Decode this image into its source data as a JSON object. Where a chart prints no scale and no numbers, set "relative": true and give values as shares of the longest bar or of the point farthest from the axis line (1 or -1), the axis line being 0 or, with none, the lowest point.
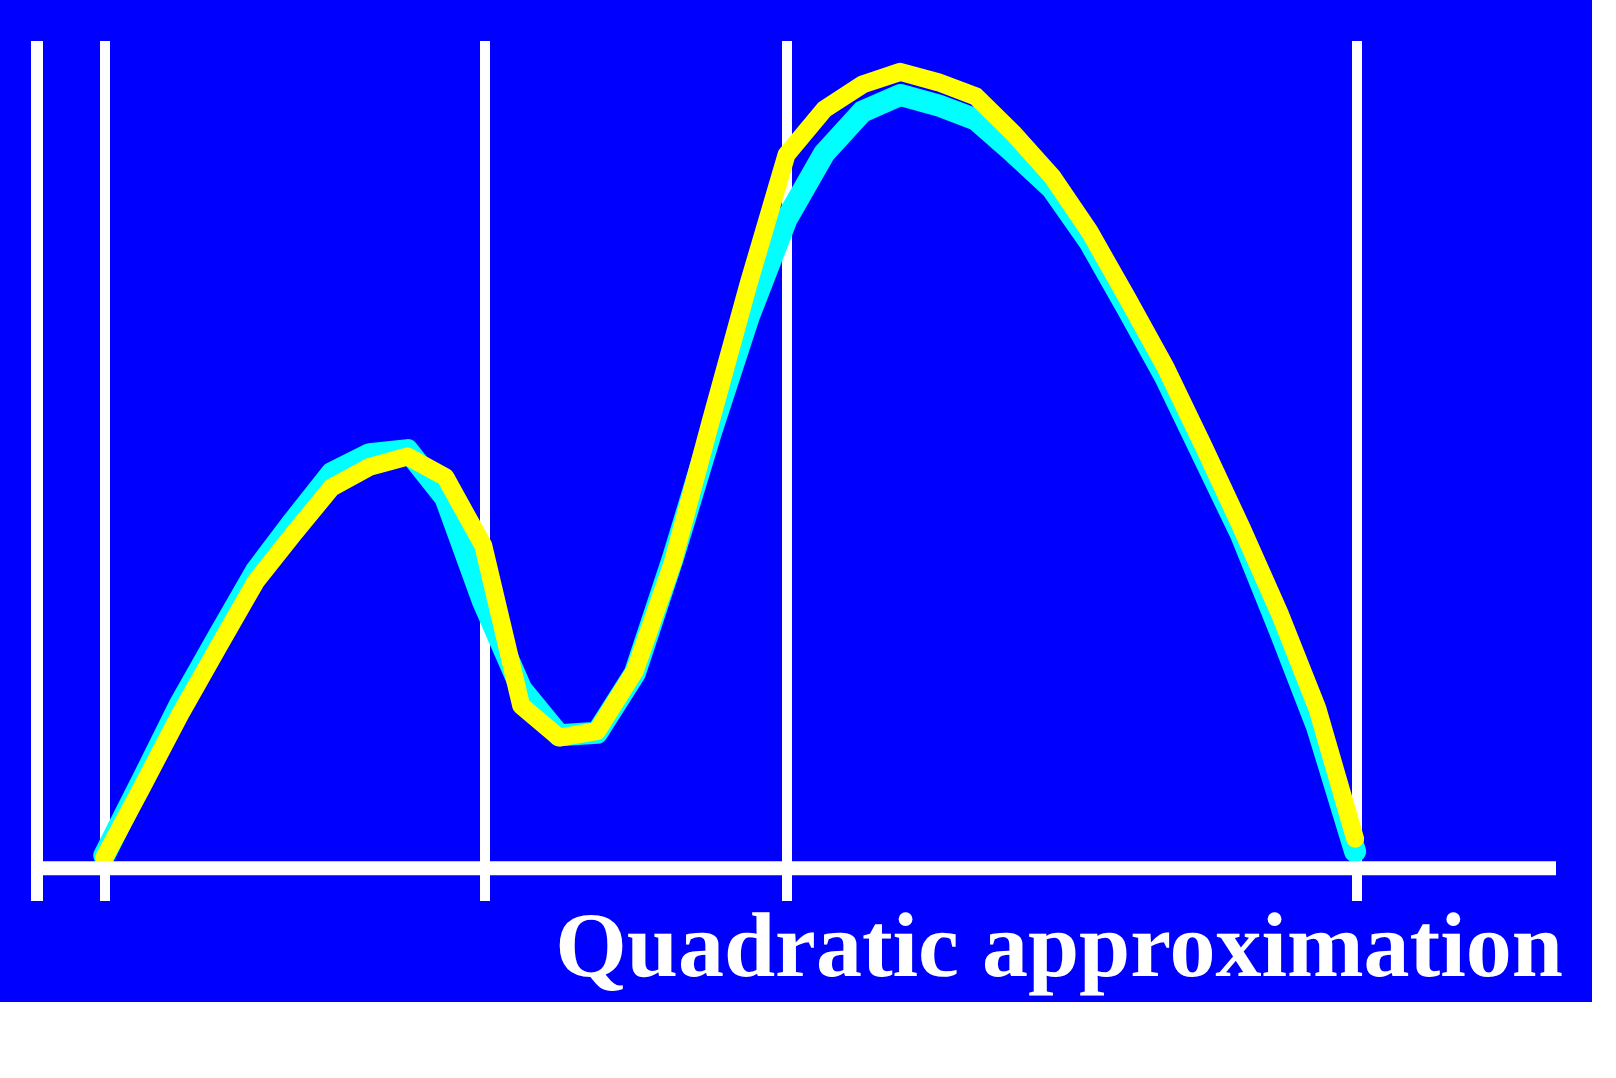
{
  "chart_data": {
    "type": "line",
    "title": "Quadratic approximation",
    "relative": true,
    "tick_labels": false,
    "grid": "x",
    "line_style": "solid",
    "categories": [
      null,
      null,
      null,
      null,
      null,
      null,
      null,
      null,
      null,
      null,
      null,
      null,
      null,
      null,
      null,
      null,
      null,
      null,
      null,
      null,
      null,
      null,
      null,
      null,
      null,
      null,
      null,
      null,
      null,
      null,
      null,
      null,
      null,
      null
    ],
    "series": [
      {
        "color": "#00ffff",
        "values": [
          0.016,
          0.11,
          0.206,
          0.29,
          0.373,
          0.436,
          0.496,
          0.52,
          0.525,
          0.465,
          0.334,
          0.225,
          0.167,
          0.17,
          0.245,
          0.389,
          0.546,
          0.692,
          0.815,
          0.898,
          0.95,
          0.971,
          0.958,
          0.94,
          0.898,
          0.854,
          0.786,
          0.702,
          0.616,
          0.517,
          0.418,
          0.3,
          0.177,
          0.021
        ]
      },
      {
        "color": "#ffff00",
        "values": [
          0.013,
          0.102,
          0.193,
          0.277,
          0.36,
          0.42,
          0.478,
          0.504,
          0.517,
          0.491,
          0.405,
          0.204,
          0.164,
          0.172,
          0.248,
          0.384,
          0.561,
          0.734,
          0.896,
          0.953,
          0.984,
          1.0,
          0.987,
          0.969,
          0.922,
          0.869,
          0.799,
          0.715,
          0.629,
          0.53,
          0.428,
          0.321,
          0.201,
          0.037
        ]
      }
    ]
  }
}
